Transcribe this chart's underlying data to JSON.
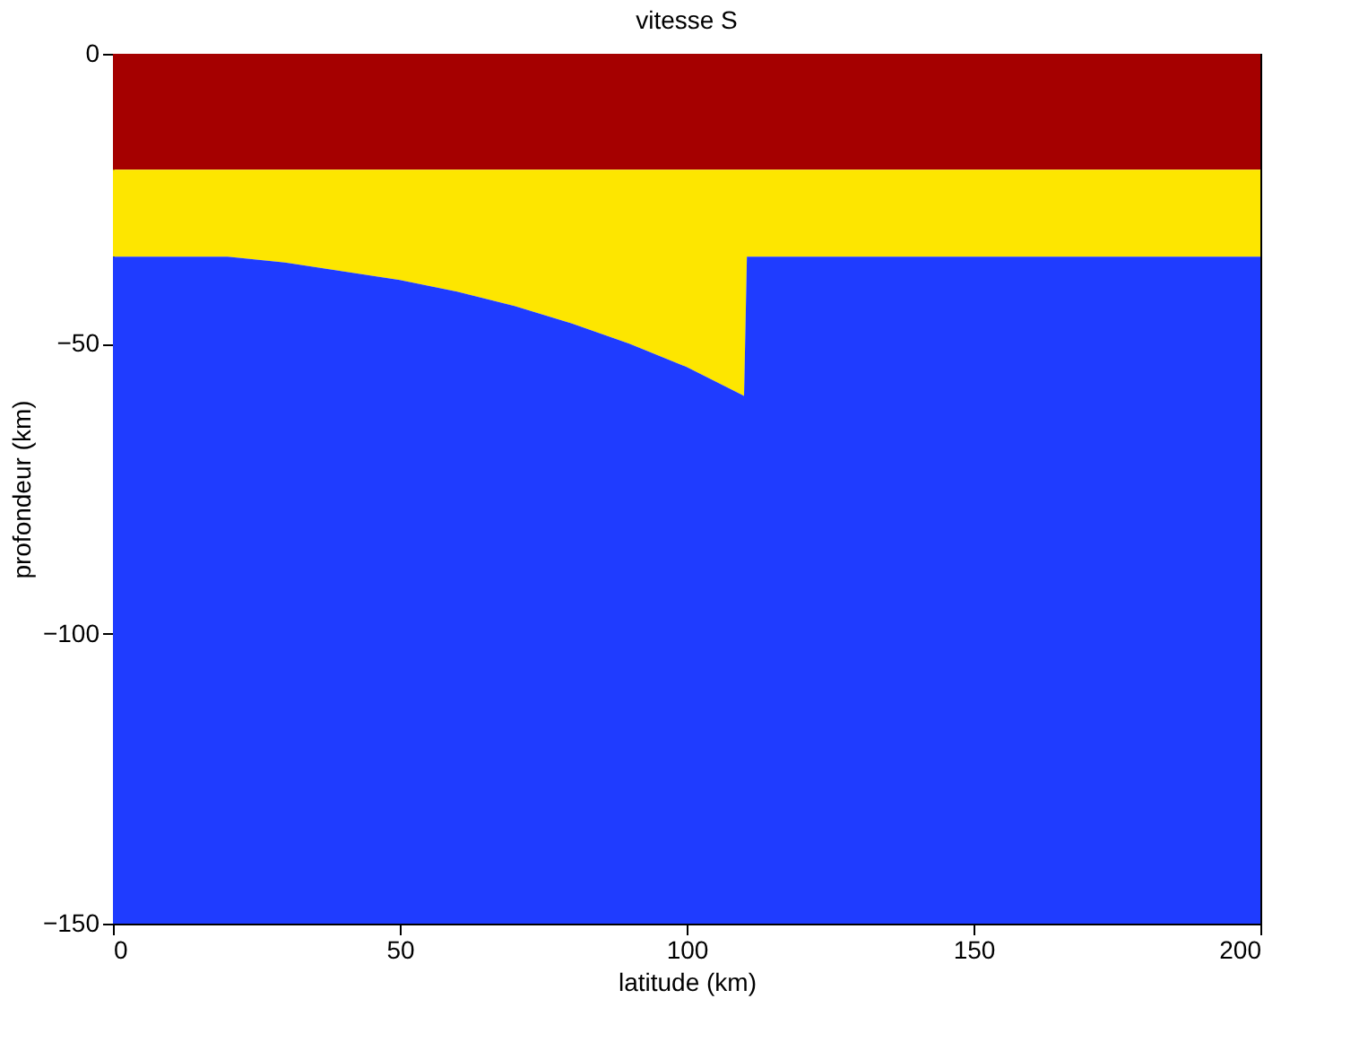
{
  "chart_data": {
    "type": "area",
    "stacked": true,
    "title": "vitesse S",
    "xlabel": "latitude (km)",
    "ylabel": "profondeur (km)",
    "x": [
      0,
      20,
      30,
      40,
      50,
      60,
      70,
      80,
      90,
      100,
      108,
      110,
      110.5,
      200
    ],
    "series": [
      {
        "color": "#a50000",
        "values": [
          -20,
          -20,
          -20,
          -20,
          -20,
          -20,
          -20,
          -20,
          -20,
          -20,
          -20,
          -20,
          -20,
          -20
        ]
      },
      {
        "color": "#fde600",
        "values": [
          -15,
          -15,
          -16,
          -17.5,
          -19,
          -21,
          -23.5,
          -26.5,
          -30,
          -34,
          -38,
          -39,
          -15,
          -15
        ]
      },
      {
        "color": "#1f3cff",
        "values": [
          -115,
          -115,
          -114,
          -112.5,
          -111,
          -109,
          -106.5,
          -103.5,
          -100,
          -96,
          -92,
          -91,
          -115,
          -115
        ]
      }
    ],
    "xlim": [
      0,
      200
    ],
    "xticks": [
      0,
      50,
      100,
      150,
      200
    ],
    "ylim": [
      -150,
      0
    ],
    "yticks": [
      -150,
      -100,
      -50,
      0
    ],
    "grid": false,
    "legend": false
  }
}
